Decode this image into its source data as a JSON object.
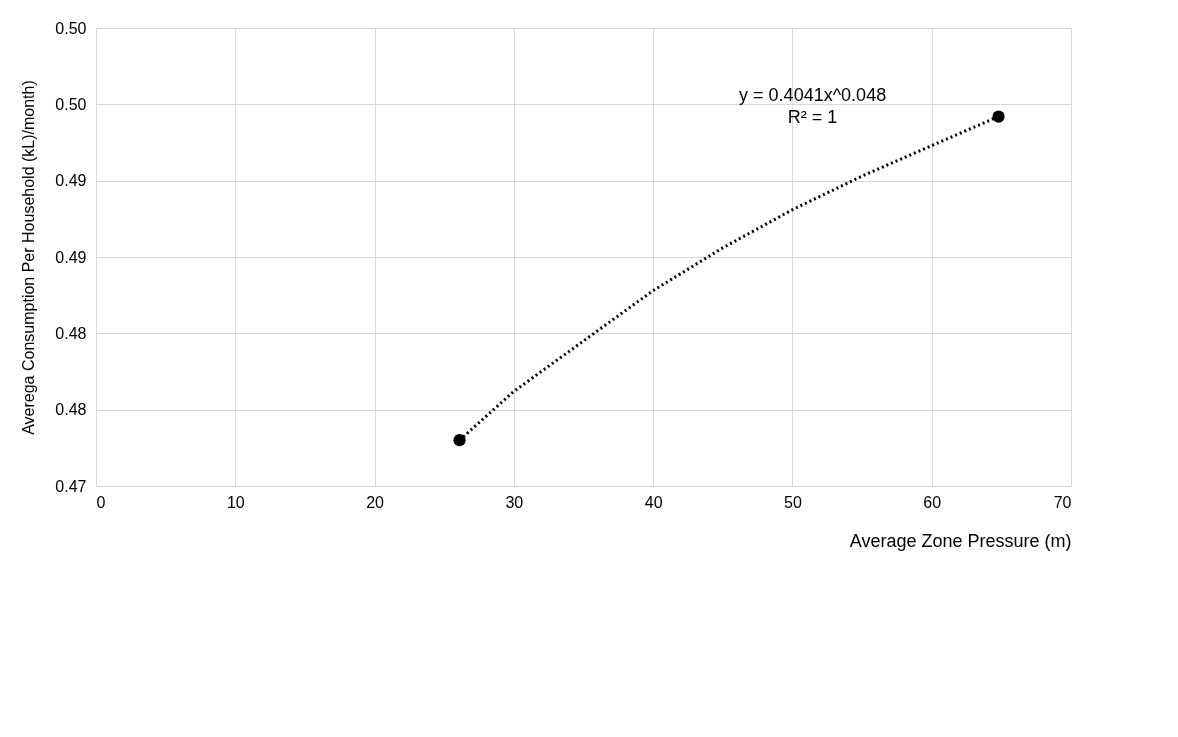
{
  "chart_data": {
    "type": "scatter",
    "xlabel": "Average Zone Pressure (m)",
    "ylabel": "Averega Consumption Per Household (kL)/month)",
    "series": [
      {
        "color": "#000000",
        "marker": "circle",
        "x": [
          26.1,
          64.8
        ],
        "values": [
          0.473,
          0.4942
        ]
      },
      {
        "type": "line",
        "color": "#000000",
        "marker": "none",
        "line_style": "dotted",
        "x": [
          26.1,
          30,
          35,
          40,
          45,
          50,
          55,
          60,
          64.8
        ],
        "values": [
          0.473,
          0.4762,
          0.4795,
          0.4828,
          0.4856,
          0.4881,
          0.4903,
          0.4923,
          0.4942
        ]
      }
    ],
    "xlim": [
      0,
      70
    ],
    "xticks": [
      0,
      10,
      20,
      30,
      40,
      50,
      60,
      70
    ],
    "ylim": [
      0.47,
      0.5
    ],
    "yticks": [
      0.47,
      {
        "value": 0.475,
        "label": "0.48"
      },
      0.48,
      {
        "value": 0.485,
        "label": "0.49"
      },
      0.49,
      {
        "value": 0.495,
        "label": "0.50"
      },
      {
        "value": 0.5,
        "label": "0.50"
      }
    ],
    "grid": true,
    "annotations": [
      "y = 0.4041x^0.048",
      "R² = 1"
    ]
  }
}
